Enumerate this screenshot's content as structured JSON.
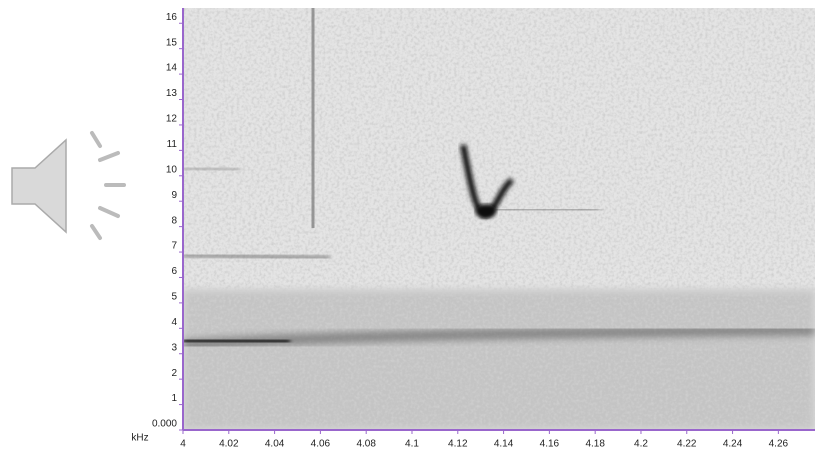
{
  "chart_data": {
    "type": "spectrogram",
    "y_label": "kHz",
    "xlim": [
      4,
      4.276
    ],
    "xticks": [
      {
        "value": 4,
        "label": "4"
      },
      4.02,
      4.04,
      4.06,
      4.08,
      4.1,
      4.12,
      4.14,
      4.16,
      4.18,
      4.2,
      4.22,
      4.24,
      4.26
    ],
    "ylim": [
      0,
      16.6
    ],
    "yticks": [
      {
        "value": 0,
        "label": "0.000"
      },
      1,
      2,
      3,
      4,
      5,
      6,
      7,
      8,
      9,
      10,
      11,
      12,
      13,
      14,
      15,
      16
    ],
    "axis_color": "#9966cc"
  }
}
